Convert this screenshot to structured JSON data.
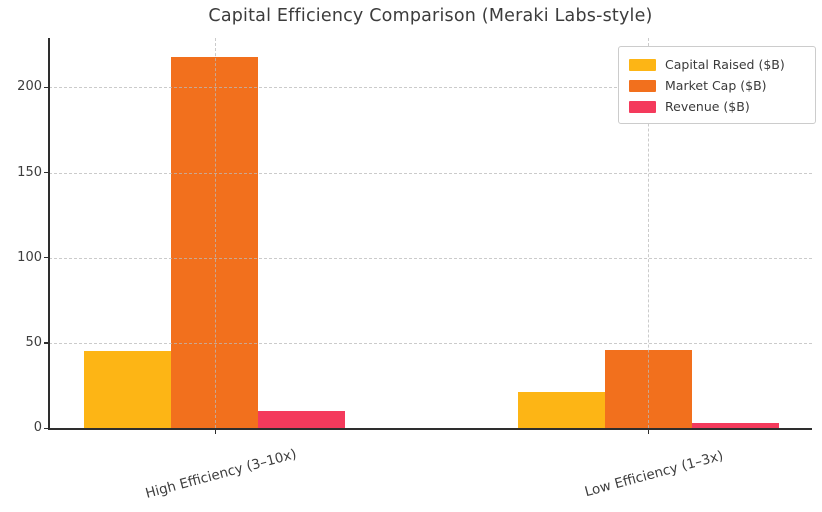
{
  "figure": {
    "title": "Capital Efficiency Comparison (Meraki Labs-style)"
  },
  "chart_data": {
    "type": "bar",
    "title": "Capital Efficiency Comparison (Meraki Labs-style)",
    "categories": [
      "High Efficiency (3–10x)",
      "Low Efficiency (1–3x)"
    ],
    "series": [
      {
        "name": "Capital Raised ($B)",
        "color": "#FDB515",
        "values": [
          45,
          21
        ]
      },
      {
        "name": "Market Cap ($B)",
        "color": "#F2701D",
        "values": [
          218,
          46
        ]
      },
      {
        "name": "Revenue ($B)",
        "color": "#F43A5C",
        "values": [
          10,
          3
        ]
      }
    ],
    "xlabel": "",
    "ylabel": "",
    "ylim": [
      0,
      229
    ],
    "yticks": [
      0,
      50,
      100,
      150,
      200
    ],
    "grid": true,
    "grid_style": "dashed",
    "legend_position": "upper right",
    "colors": {
      "spine": "#2e2e2e",
      "grid": "#bbbbbb",
      "text": "#3c3c3c"
    }
  }
}
